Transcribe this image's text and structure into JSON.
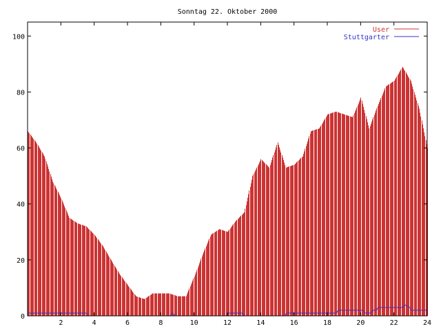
{
  "chart_data": {
    "type": "bar",
    "title": "Sonntag 22. Oktober 2000",
    "xlabel": "",
    "ylabel": "",
    "xlim": [
      0,
      24
    ],
    "ylim": [
      0,
      105
    ],
    "xticks": [
      2,
      4,
      6,
      8,
      10,
      12,
      14,
      16,
      18,
      20,
      22,
      24
    ],
    "xtick_labels": [
      "2",
      "4",
      "6",
      "8",
      "10",
      "12",
      "14",
      "16",
      "18",
      "20",
      "22",
      "24"
    ],
    "yticks": [
      0,
      20,
      40,
      60,
      80,
      100
    ],
    "ytick_labels": [
      "0",
      "20",
      "40",
      "60",
      "80",
      "100"
    ],
    "legend_position": "top-right",
    "grid": false,
    "series": [
      {
        "name": "User",
        "style": "impulses",
        "color": "#cc3333",
        "x": [
          0,
          0.5,
          1,
          1.5,
          2,
          2.5,
          3,
          3.5,
          4,
          4.5,
          5,
          5.5,
          6,
          6.5,
          7,
          7.5,
          8,
          8.5,
          9,
          9.5,
          10,
          10.5,
          11,
          11.5,
          12,
          12.5,
          13,
          13.5,
          14,
          14.5,
          15,
          15.5,
          16,
          16.5,
          17,
          17.5,
          18,
          18.5,
          19,
          19.5,
          20,
          20.5,
          21,
          21.5,
          22,
          22.5,
          23,
          23.5,
          24
        ],
        "values": [
          66,
          62,
          57,
          48,
          42,
          35,
          33,
          32,
          29,
          25,
          20,
          15,
          11,
          7,
          6,
          8,
          8,
          8,
          7,
          7,
          14,
          22,
          29,
          31,
          30,
          34,
          37,
          50,
          56,
          53,
          62,
          53,
          54,
          57,
          66,
          67,
          72,
          73,
          72,
          71,
          78,
          67,
          75,
          82,
          84,
          89,
          84,
          74,
          60
        ]
      },
      {
        "name": "Stuttgarter",
        "style": "line",
        "color": "#3333cc",
        "x": [
          0,
          3.55,
          3.6,
          8.55,
          8.7,
          8.85,
          11.95,
          12.05,
          12.9,
          13.0,
          15.45,
          15.55,
          18.55,
          18.65,
          20.15,
          20.25,
          20.6,
          20.75,
          20.95,
          21.05,
          22.55,
          22.65,
          22.95,
          23.05,
          24
        ],
        "values": [
          1,
          1,
          0,
          0,
          1,
          0,
          0,
          1,
          1,
          0,
          0,
          1,
          1,
          2,
          2,
          1,
          1,
          2,
          2,
          3,
          3,
          4,
          3,
          2,
          2
        ]
      }
    ]
  }
}
